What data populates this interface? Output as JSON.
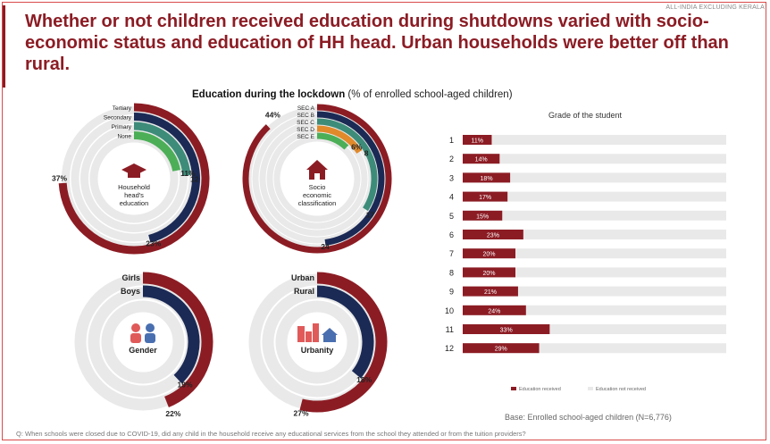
{
  "header": {
    "tag": "ALL-INDIA EXCLUDING KERALA",
    "headline": "Whether or not children received education during shutdowns varied with socio-economic status and education of HH head. Urban households were better off than rural.",
    "subtitle_bold": "Education during the lockdown",
    "subtitle_rest": " (% of enrolled school-aged children)"
  },
  "footer": {
    "base": "Base: Enrolled school-aged children (N=6,776)",
    "question": "Q: When schools were closed due to COVID-19, did any child in the household receive any educational services from the school they attended or from the tuition providers?"
  },
  "colors": {
    "dark_red": "#8c1c24",
    "navy": "#1b2a55",
    "teal": "#3d8c7a",
    "green": "#4caf58",
    "orange": "#e08a2c",
    "track": "#e9e9e9"
  },
  "chart_data": [
    {
      "type": "radial-bar",
      "center_label": [
        "Household",
        "head's",
        "education"
      ],
      "icon": "graduation-cap-icon",
      "categories": [
        "Tertiary",
        "Secondary",
        "Primary",
        "None"
      ],
      "value_labels": [
        "37%",
        "23%",
        "12",
        "11%"
      ],
      "values": [
        37,
        23,
        12,
        11
      ]
    },
    {
      "type": "radial-bar",
      "center_label": [
        "Socio",
        "economic",
        "classification"
      ],
      "icon": "house-icon",
      "categories": [
        "SEC A",
        "SEC B",
        "SEC C",
        "SEC D",
        "SEC E"
      ],
      "value_labels": [
        "44%",
        "24",
        "17",
        "8",
        "6%"
      ],
      "values": [
        44,
        24,
        17,
        8,
        6
      ]
    },
    {
      "type": "radial-bar",
      "center_label": [
        "Gender"
      ],
      "icon": "people-icon",
      "categories": [
        "Girls",
        "Boys"
      ],
      "value_labels": [
        "22%",
        "19%"
      ],
      "values": [
        22,
        19
      ]
    },
    {
      "type": "radial-bar",
      "center_label": [
        "Urbanity"
      ],
      "icon": "city-icon",
      "categories": [
        "Urban",
        "Rural"
      ],
      "value_labels": [
        "27%",
        "18%"
      ],
      "values": [
        27,
        18
      ]
    },
    {
      "type": "bar",
      "title": "Grade of the student",
      "categories": [
        "1",
        "2",
        "3",
        "4",
        "5",
        "6",
        "7",
        "8",
        "9",
        "10",
        "11",
        "12"
      ],
      "values": [
        11,
        14,
        18,
        17,
        15,
        23,
        20,
        20,
        21,
        24,
        33,
        29
      ],
      "value_labels": [
        "11%",
        "14%",
        "18%",
        "17%",
        "15%",
        "23%",
        "20%",
        "20%",
        "21%",
        "24%",
        "33%",
        "29%"
      ],
      "legend": [
        "Education received",
        "Education not received"
      ],
      "xlim": [
        0,
        100
      ]
    }
  ]
}
